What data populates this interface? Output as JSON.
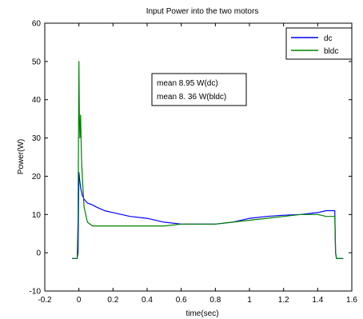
{
  "chart_data": {
    "type": "line",
    "title": "Input Power into the two motors",
    "xlabel": "time(sec)",
    "ylabel": "Power(W)",
    "xlim": [
      -0.2,
      1.6
    ],
    "ylim": [
      -10,
      60
    ],
    "xticks": [
      -0.2,
      0,
      0.2,
      0.4,
      0.6,
      0.8,
      1,
      1.2,
      1.4,
      1.6
    ],
    "yticks": [
      -10,
      0,
      10,
      20,
      30,
      40,
      50,
      60
    ],
    "xtick_labels": [
      "-0.2",
      "0",
      "0.2",
      "0.4",
      "0.6",
      "0.8",
      "1",
      "1.2",
      "1.4",
      "1.6"
    ],
    "ytick_labels": [
      "-10",
      "0",
      "10",
      "20",
      "30",
      "40",
      "50",
      "60"
    ],
    "grid": false,
    "legend_position": "top-right",
    "series": [
      {
        "name": "dc",
        "color": "#0000ff",
        "x": [
          -0.04,
          -0.01,
          -0.005,
          0.0,
          0.005,
          0.01,
          0.02,
          0.03,
          0.05,
          0.08,
          0.1,
          0.15,
          0.2,
          0.3,
          0.4,
          0.5,
          0.6,
          0.7,
          0.8,
          0.9,
          1.0,
          1.1,
          1.2,
          1.3,
          1.4,
          1.45,
          1.5,
          1.505,
          1.51,
          1.55
        ],
        "y": [
          -1.5,
          -1.5,
          0,
          21,
          19,
          17,
          15,
          14,
          13,
          12.5,
          12,
          11,
          10.5,
          9.5,
          9,
          8,
          7.5,
          7.5,
          7.5,
          8,
          9,
          9.5,
          9.8,
          10,
          10.5,
          11,
          11,
          0,
          -1.5,
          -1.5
        ]
      },
      {
        "name": "bldc",
        "color": "#008000",
        "x": [
          -0.04,
          -0.01,
          -0.005,
          0.0,
          0.003,
          0.006,
          0.01,
          0.015,
          0.02,
          0.025,
          0.03,
          0.04,
          0.05,
          0.08,
          0.1,
          0.15,
          0.2,
          0.3,
          0.4,
          0.5,
          0.6,
          0.7,
          0.8,
          0.9,
          1.0,
          1.1,
          1.2,
          1.3,
          1.4,
          1.45,
          1.5,
          1.505,
          1.51,
          1.55
        ],
        "y": [
          -1.5,
          -1.5,
          9,
          50,
          35,
          30,
          36,
          25,
          20,
          16,
          12,
          10,
          8,
          7,
          7,
          7,
          7,
          7,
          7,
          7,
          7.5,
          7.5,
          7.5,
          8,
          8.5,
          9,
          9.5,
          10,
          10,
          9.5,
          9.5,
          0,
          -1.5,
          -1.5
        ]
      }
    ],
    "annotations": [
      "mean  8.95 W(dc)",
      "mean  8. 36 W(bldc)"
    ]
  }
}
